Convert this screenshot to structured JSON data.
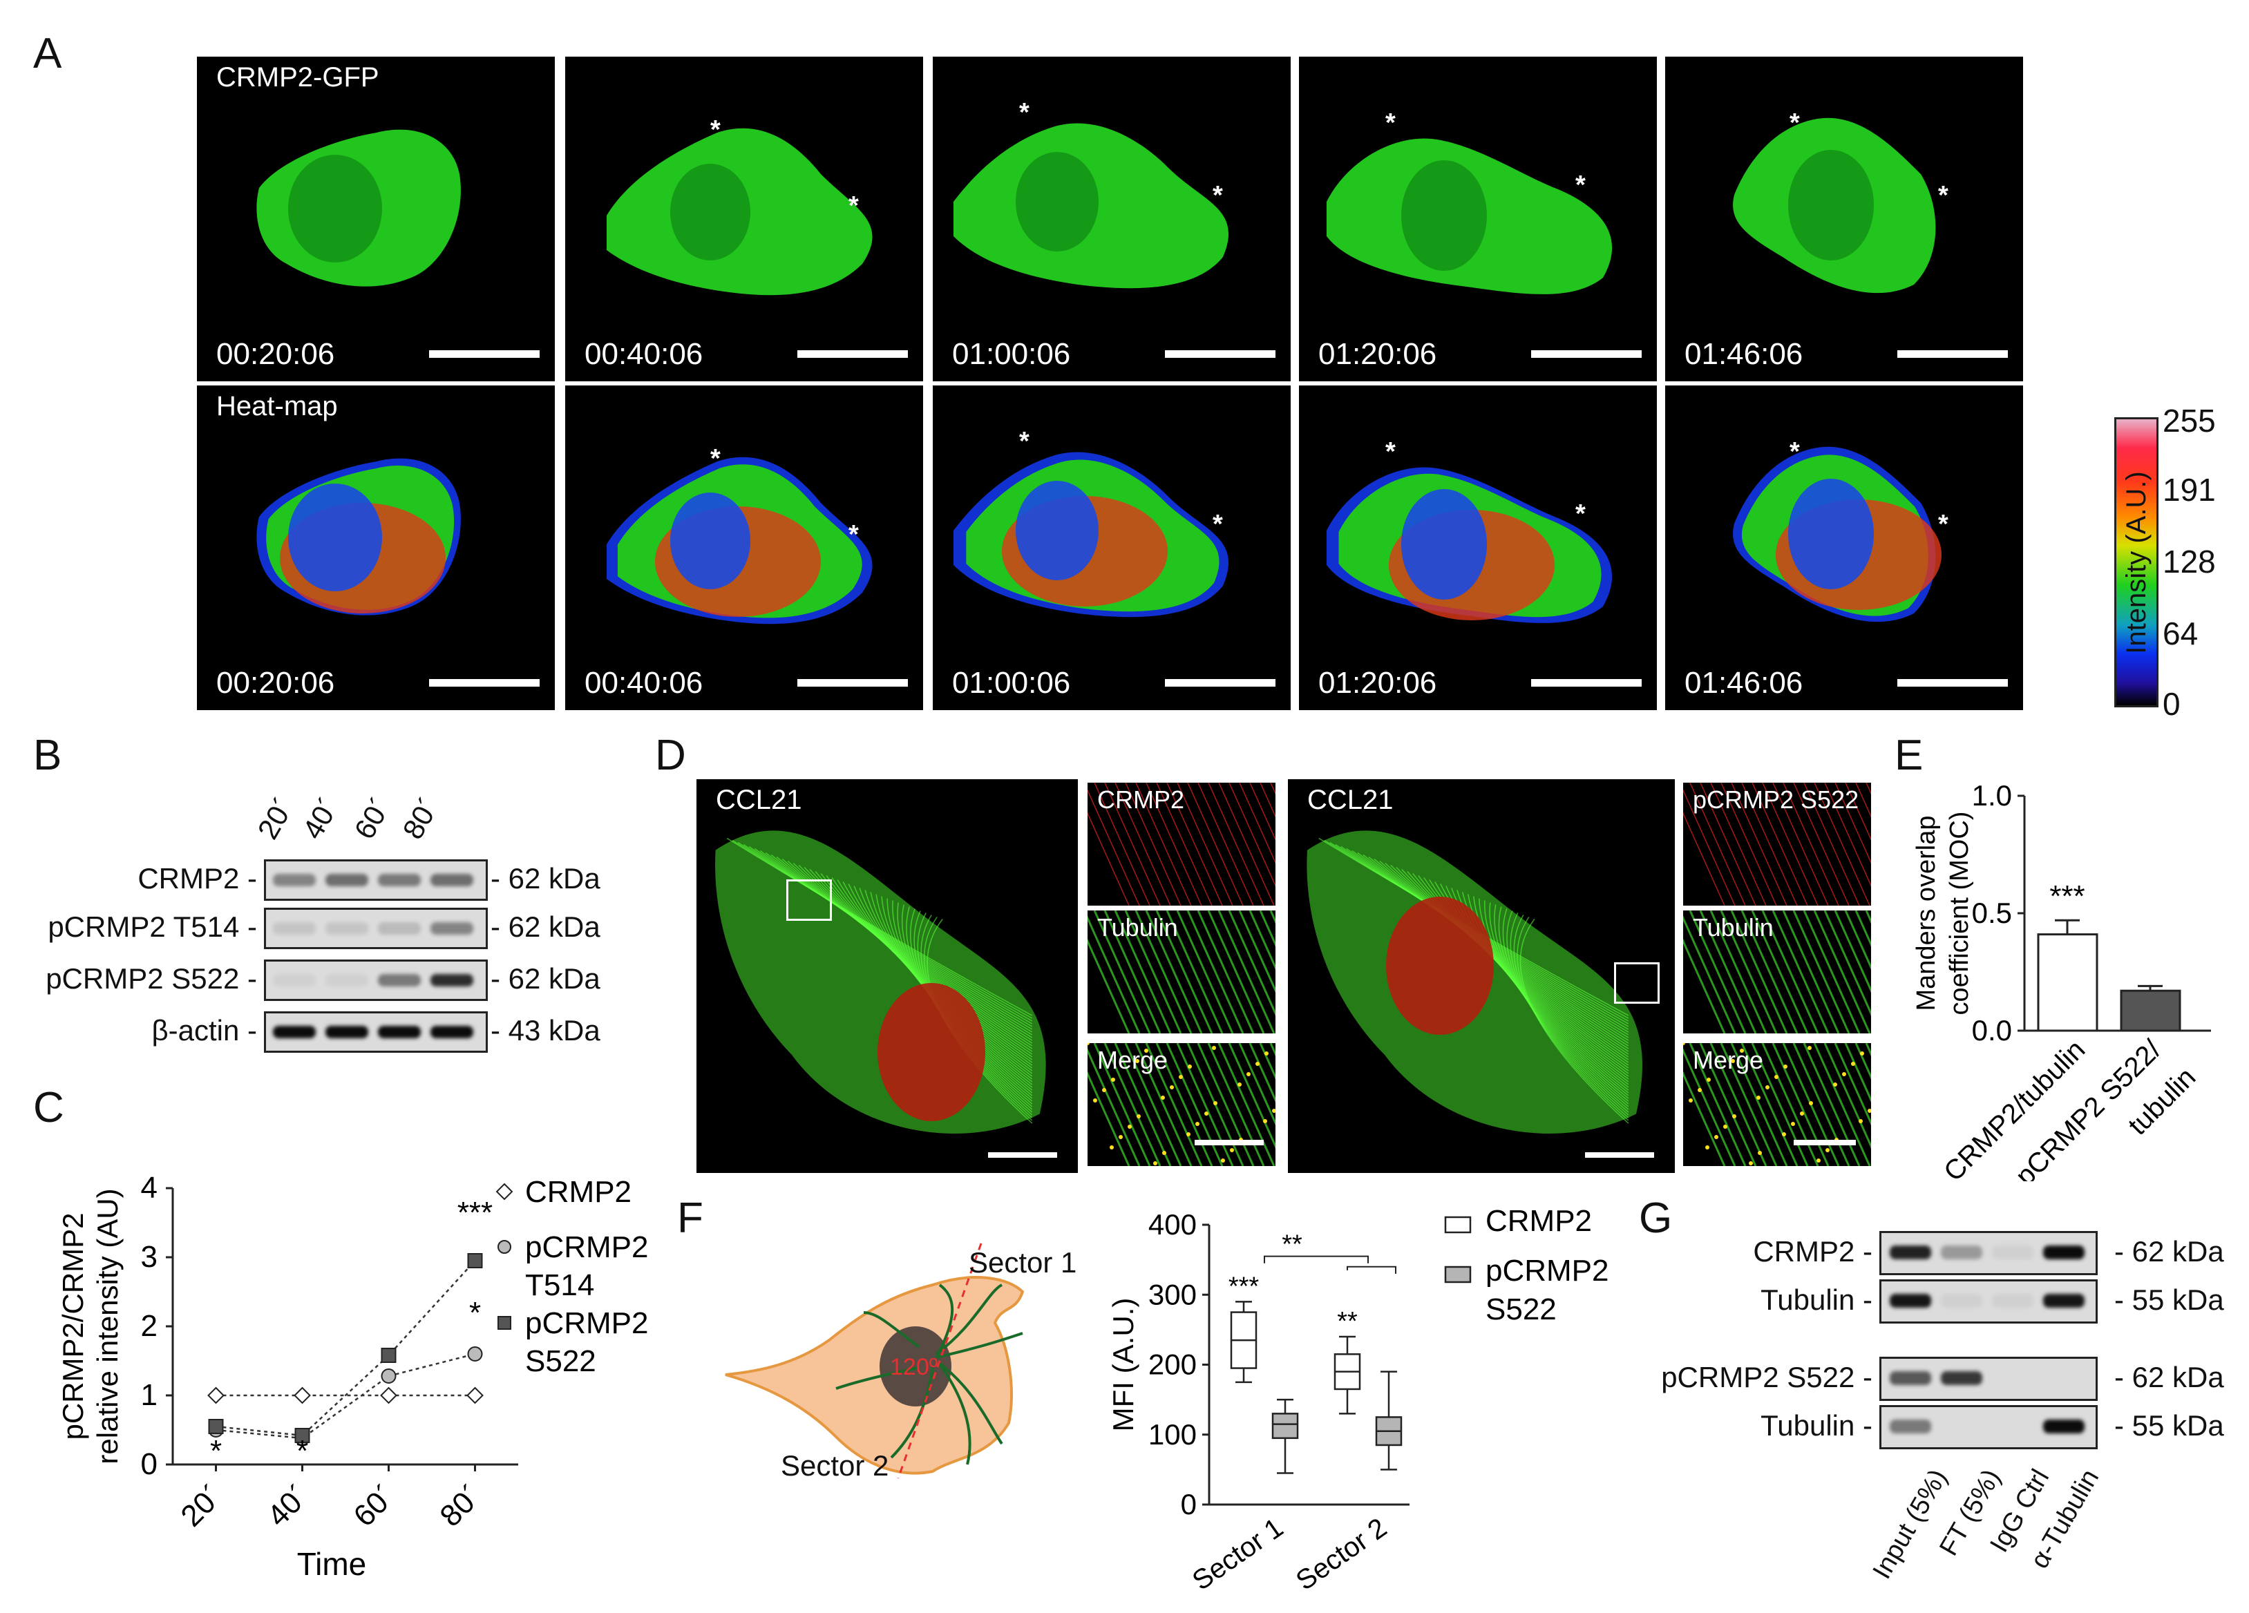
{
  "panelA": {
    "label": "A",
    "row1_caption": "CRMP2-GFP",
    "row2_caption": "Heat-map",
    "times": [
      "00:20:06",
      "00:40:06",
      "01:00:06",
      "01:20:06",
      "01:46:06"
    ],
    "star": "*",
    "colorbar": {
      "ticks": [
        "255",
        "191",
        "128",
        "64",
        "0"
      ],
      "label": "Intensity (A.U.)"
    }
  },
  "panelB": {
    "label": "B",
    "lanes": [
      "20´",
      "40´",
      "60´",
      "80´"
    ],
    "rows": [
      {
        "name": "CRMP2 -",
        "size": "- 62 kDa"
      },
      {
        "name": "pCRMP2 T514 -",
        "size": "- 62 kDa"
      },
      {
        "name": "pCRMP2 S522 -",
        "size": "- 62 kDa"
      },
      {
        "name": "β-actin -",
        "size": "- 43 kDa"
      }
    ]
  },
  "panelC": {
    "label": "C",
    "ylabel_line1": "pCRMP2/CRMP2",
    "ylabel_line2": "relative intensity (AU)",
    "xlabel": "Time",
    "yticks": [
      "0",
      "1",
      "2",
      "3",
      "4"
    ],
    "xticks": [
      "20´",
      "40´",
      "60´",
      "80´"
    ],
    "legend": [
      {
        "line1": "CRMP2",
        "line2": ""
      },
      {
        "line1": "pCRMP2",
        "line2": "T514"
      },
      {
        "line1": "pCRMP2",
        "line2": "S522"
      }
    ],
    "annotations": {
      "a80_top": "***",
      "a80_mid": "*",
      "a20": "*",
      "a40": "*"
    }
  },
  "chart_data": [
    {
      "type": "line",
      "x": [
        20,
        40,
        60,
        80
      ],
      "series": [
        {
          "name": "CRMP2",
          "values": [
            1,
            1,
            1,
            1
          ]
        },
        {
          "name": "pCRMP2 T514",
          "values": [
            0.5,
            0.38,
            1.28,
            1.6
          ]
        },
        {
          "name": "pCRMP2 S522",
          "values": [
            0.55,
            0.42,
            1.58,
            2.95
          ]
        }
      ],
      "xlabel": "Time",
      "ylabel": "pCRMP2/CRMP2 relative intensity (AU)",
      "ylim": [
        0,
        4
      ]
    },
    {
      "type": "bar",
      "categories": [
        "CRMP2/tubulin",
        "pCRMP2 S522/ tubulin"
      ],
      "values": [
        0.41,
        0.17
      ],
      "errors": [
        0.06,
        0.02
      ],
      "ylabel": "Manders overlap coefficient (MOC)",
      "ylim": [
        0,
        1.0
      ]
    },
    {
      "type": "box",
      "categories": [
        "Sector 1",
        "Sector 2"
      ],
      "series": [
        {
          "name": "CRMP2",
          "boxes": [
            {
              "min": 175,
              "q1": 195,
              "median": 235,
              "q3": 275,
              "max": 290
            },
            {
              "min": 130,
              "q1": 165,
              "median": 190,
              "q3": 215,
              "max": 240
            }
          ]
        },
        {
          "name": "pCRMP2 S522",
          "boxes": [
            {
              "min": 45,
              "q1": 95,
              "median": 115,
              "q3": 130,
              "max": 150
            },
            {
              "min": 50,
              "q1": 85,
              "median": 105,
              "q3": 125,
              "max": 190
            }
          ]
        }
      ],
      "ylabel": "MFI (A.U.)",
      "ylim": [
        0,
        400
      ]
    }
  ],
  "panelD": {
    "label": "D",
    "left_caption": "CCL21",
    "right_caption": "CCL21",
    "left_insets": [
      "CRMP2",
      "Tubulin",
      "Merge"
    ],
    "right_insets": [
      "pCRMP2 S522",
      "Tubulin",
      "Merge"
    ]
  },
  "panelE": {
    "label": "E",
    "ylabel_line1": "Manders overlap",
    "ylabel_line2": "coefficient (MOC)",
    "yticks": [
      "0.0",
      "0.5",
      "1.0"
    ],
    "xlabels": [
      "CRMP2/tubulin",
      "pCRMP2 S522/",
      "tubulin"
    ],
    "sig": "***"
  },
  "panelF": {
    "label": "F",
    "sector1": "Sector 1",
    "sector2": "Sector 2",
    "angle": "120º",
    "ylabel": "MFI (A.U.)",
    "yticks": [
      "0",
      "100",
      "200",
      "300",
      "400"
    ],
    "xticks": [
      "Sector 1",
      "Sector 2"
    ],
    "legend": [
      {
        "line1": "CRMP2",
        "line2": ""
      },
      {
        "line1": "pCRMP2",
        "line2": "S522"
      }
    ],
    "sig_top": "**",
    "sig_s1": "***",
    "sig_s2": "**"
  },
  "panelG": {
    "label": "G",
    "rows": [
      {
        "name": "CRMP2 -",
        "size": "- 62 kDa"
      },
      {
        "name": "Tubulin -",
        "size": "- 55 kDa"
      },
      {
        "name": "pCRMP2 S522 -",
        "size": "- 62 kDa"
      },
      {
        "name": "Tubulin -",
        "size": "- 55 kDa"
      }
    ],
    "lanes": [
      "Input (5%)",
      "FT (5%)",
      "IgG Ctrl",
      "α-Tubulin"
    ]
  },
  "colors": {
    "gfp": "#22c41e",
    "red": "#e8201c",
    "blue": "#1634d0",
    "box_gray": "#b5b5b5",
    "bar_dark": "#555555"
  }
}
